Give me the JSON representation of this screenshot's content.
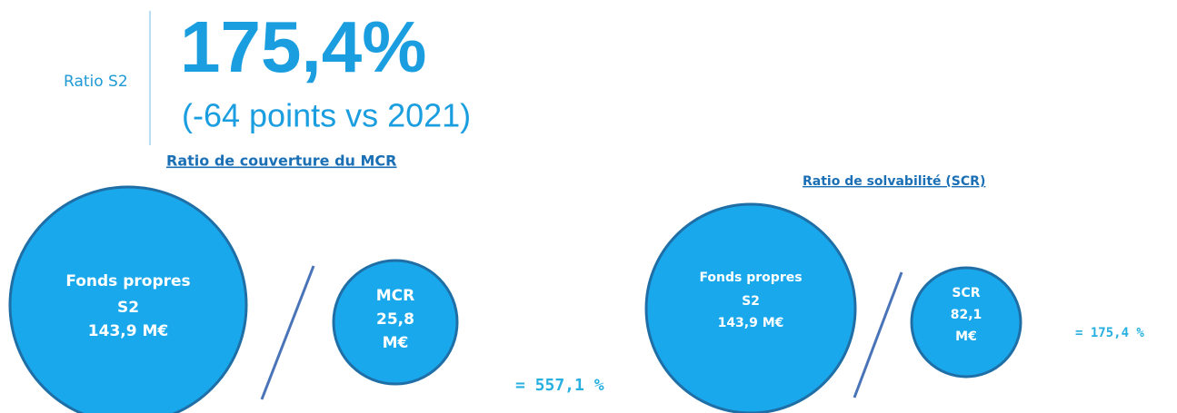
{
  "header": {
    "label": "Ratio S2",
    "value": "175,4%",
    "change": "(-64 points vs 2021)"
  },
  "panels": [
    {
      "title": "Ratio de couverture du MCR",
      "numerator": [
        "Fonds propres",
        "S2",
        "143,9 M€"
      ],
      "denominator": [
        "MCR",
        "25,8",
        "M€"
      ],
      "result": "= 557,1 %"
    },
    {
      "title": "Ratio de solvabilité (SCR)",
      "numerator": [
        "Fonds propres",
        "S2",
        "143,9 M€"
      ],
      "denominator": [
        "SCR",
        "82,1",
        "M€"
      ],
      "result": "= 175,4 %"
    }
  ]
}
